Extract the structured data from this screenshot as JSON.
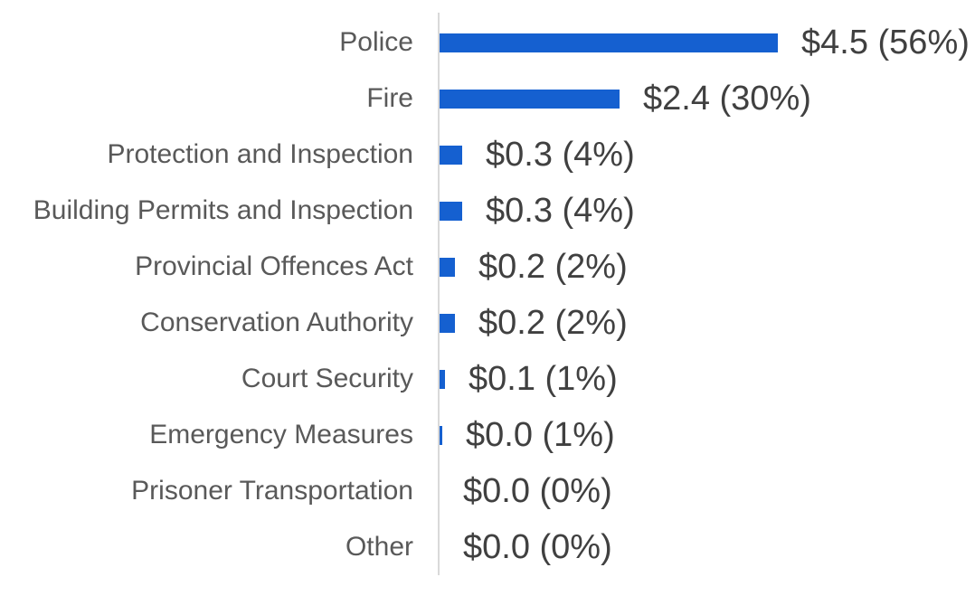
{
  "chart_data": {
    "type": "bar",
    "orientation": "horizontal",
    "title": "",
    "legend": "none",
    "grid": "off",
    "xlim": [
      0,
      4.5
    ],
    "categories": [
      "Police",
      "Fire",
      "Protection and Inspection",
      "Building Permits and Inspection",
      "Provincial Offences Act",
      "Conservation Authority",
      "Court Security",
      "Emergency Measures",
      "Prisoner Transportation",
      "Other"
    ],
    "values_dollars": [
      4.5,
      2.4,
      0.3,
      0.3,
      0.2,
      0.2,
      0.1,
      0.0,
      0.0,
      0.0
    ],
    "percentages": [
      56,
      30,
      4,
      4,
      2,
      2,
      1,
      1,
      0,
      0
    ],
    "data_labels": [
      "$4.5 (56%)",
      "$2.4 (30%)",
      "$0.3 (4%)",
      "$0.3 (4%)",
      "$0.2 (2%)",
      "$0.2 (2%)",
      "$0.1 (1%)",
      "$0.0 (1%)",
      "$0.0 (0%)",
      "$0.0 (0%)"
    ],
    "bar_lengths_est": [
      4.5,
      2.4,
      0.3,
      0.3,
      0.2,
      0.2,
      0.07,
      0.04,
      0,
      0
    ],
    "colors": {
      "bar": "#1560d0",
      "axis_line": "#d9d9d9",
      "category_label": "#595959",
      "value_label": "#404040"
    }
  }
}
